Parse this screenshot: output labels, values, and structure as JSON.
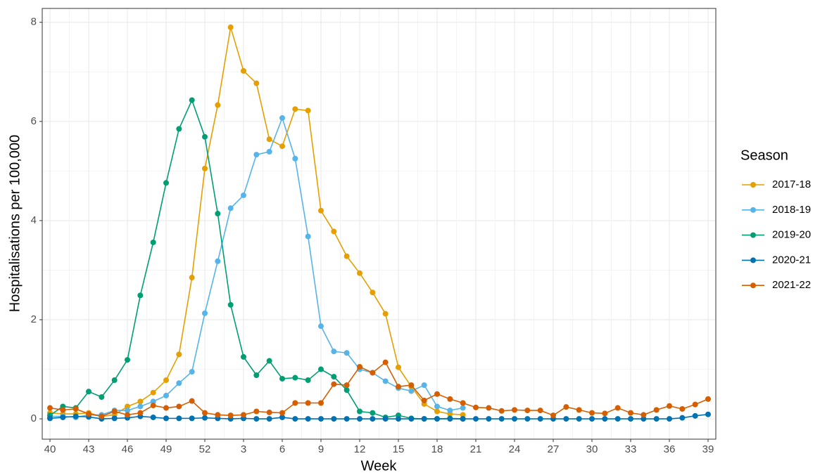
{
  "chart_data": {
    "type": "line",
    "x_label": "Week",
    "y_label": "Hospitalisations per 100,000",
    "legend_title": "Season",
    "legend": "right",
    "grid": true,
    "categories": [
      "40",
      null,
      null,
      "43",
      null,
      null,
      "46",
      null,
      null,
      "49",
      null,
      null,
      "52",
      null,
      null,
      "3",
      null,
      null,
      "6",
      null,
      null,
      "9",
      null,
      null,
      "12",
      null,
      null,
      "15",
      null,
      null,
      "18",
      null,
      null,
      "21",
      null,
      null,
      "24",
      null,
      null,
      "27",
      null,
      null,
      "30",
      null,
      null,
      "33",
      null,
      null,
      "36",
      null,
      null,
      "39"
    ],
    "ylim": [
      -0.41,
      8.28
    ],
    "yticks": [
      0,
      2,
      4,
      6,
      8
    ],
    "series": [
      {
        "name": "2017-18",
        "color": "#E69F00",
        "values": [
          0.12,
          0.1,
          0.1,
          0.12,
          0.05,
          0.08,
          0.25,
          0.35,
          0.53,
          0.78,
          1.3,
          2.85,
          5.05,
          6.33,
          7.9,
          7.02,
          6.77,
          5.64,
          5.5,
          6.25,
          6.22,
          4.2,
          3.78,
          3.28,
          2.94,
          2.55,
          2.12,
          1.04,
          0.65,
          0.3,
          0.15,
          0.1,
          0.08,
          null,
          null,
          null,
          null,
          null,
          null,
          null,
          null,
          null,
          null,
          null,
          null,
          null,
          null,
          null,
          null,
          null,
          null,
          null
        ]
      },
      {
        "name": "2018-19",
        "color": "#56B4E9",
        "values": [
          0.05,
          0.05,
          0.03,
          0.08,
          0.08,
          0.17,
          0.17,
          0.25,
          0.35,
          0.47,
          0.72,
          0.95,
          2.13,
          3.18,
          4.25,
          4.51,
          5.33,
          5.39,
          6.07,
          5.25,
          3.68,
          1.87,
          1.36,
          1.33,
          1.0,
          0.93,
          0.76,
          0.62,
          0.56,
          0.68,
          0.25,
          0.17,
          0.22,
          null,
          null,
          null,
          null,
          null,
          null,
          null,
          null,
          null,
          null,
          null,
          null,
          null,
          null,
          null,
          null,
          null,
          null,
          null
        ]
      },
      {
        "name": "2019-20",
        "color": "#009E73",
        "values": [
          0.07,
          0.25,
          0.22,
          0.55,
          0.44,
          0.78,
          1.19,
          2.49,
          3.56,
          4.76,
          5.85,
          6.43,
          5.69,
          4.14,
          2.3,
          1.25,
          0.88,
          1.17,
          0.81,
          0.83,
          0.78,
          1.0,
          0.85,
          0.58,
          0.15,
          0.12,
          0.03,
          0.07,
          0.01,
          0.0,
          0.0,
          0.01,
          0.0,
          null,
          null,
          null,
          null,
          null,
          null,
          null,
          null,
          null,
          null,
          null,
          null,
          null,
          null,
          null,
          null,
          null,
          null,
          null
        ]
      },
      {
        "name": "2020-21",
        "color": "#0072B2",
        "values": [
          0.01,
          0.03,
          0.05,
          0.04,
          0.0,
          0.01,
          0.02,
          0.05,
          0.03,
          0.01,
          0.01,
          0.01,
          0.02,
          0.01,
          0.0,
          0.01,
          0.0,
          0.0,
          0.03,
          0.0,
          0.0,
          0.0,
          0.0,
          0.0,
          0.0,
          0.0,
          0.0,
          0.0,
          0.0,
          0.0,
          0.0,
          0.0,
          0.0,
          0.0,
          0.0,
          0.0,
          0.0,
          0.0,
          0.0,
          0.0,
          0.0,
          0.0,
          0.0,
          0.0,
          0.0,
          0.0,
          0.0,
          0.0,
          0.0,
          0.02,
          0.06,
          0.09
        ]
      },
      {
        "name": "2021-22",
        "color": "#D55E00",
        "values": [
          0.22,
          0.18,
          0.2,
          0.1,
          0.05,
          0.15,
          0.08,
          0.12,
          0.27,
          0.22,
          0.25,
          0.36,
          0.12,
          0.08,
          0.07,
          0.08,
          0.15,
          0.13,
          0.12,
          0.32,
          0.32,
          0.32,
          0.7,
          0.68,
          1.05,
          0.93,
          1.14,
          0.65,
          0.68,
          0.37,
          0.5,
          0.4,
          0.32,
          0.23,
          0.22,
          0.16,
          0.18,
          0.17,
          0.17,
          0.07,
          0.24,
          0.18,
          0.12,
          0.11,
          0.22,
          0.12,
          0.08,
          0.18,
          0.26,
          0.2,
          0.29,
          0.4
        ]
      }
    ]
  }
}
